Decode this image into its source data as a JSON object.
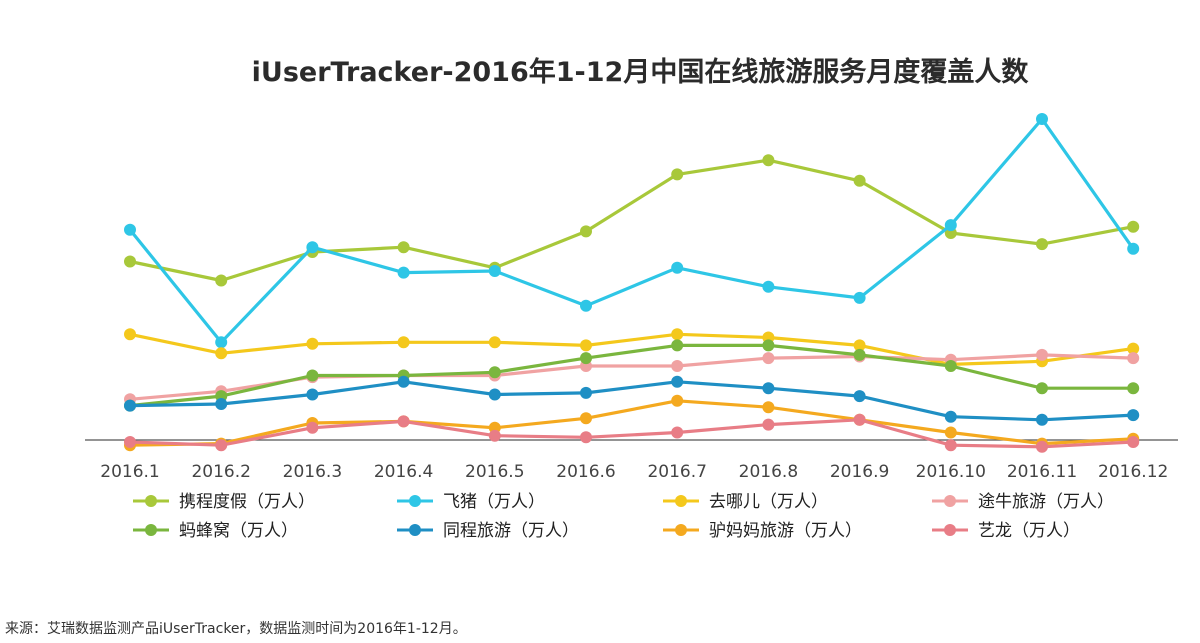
{
  "chart_data": {
    "type": "line",
    "title": "iUserTracker-2016年1-12月中国在线旅游服务月度覆盖人数",
    "xlabel": "",
    "ylabel": "",
    "categories": [
      "2016.1",
      "2016.2",
      "2016.3",
      "2016.4",
      "2016.5",
      "2016.6",
      "2016.7",
      "2016.8",
      "2016.9",
      "2016.10",
      "2016.11",
      "2016.12"
    ],
    "y_axis_visible": false,
    "grid": false,
    "legend_position": "bottom",
    "series": [
      {
        "name": "携程度假（万人）",
        "color": "#a8c83a",
        "values": [
          3190,
          3130,
          3220,
          3235,
          3170,
          3285,
          3465,
          3510,
          3445,
          3280,
          3245,
          3300
        ]
      },
      {
        "name": "飞猪（万人）",
        "color": "#2ec6e6",
        "values": [
          3290,
          2935,
          3235,
          3155,
          3160,
          3050,
          3170,
          3110,
          3075,
          3305,
          3640,
          3230
        ]
      },
      {
        "name": "去哪儿（万人）",
        "color": "#f4c81c",
        "values": [
          2960,
          2900,
          2930,
          2935,
          2935,
          2925,
          2960,
          2950,
          2925,
          2865,
          2875,
          2915
        ]
      },
      {
        "name": "途牛旅游（万人）",
        "color": "#f0a2a2",
        "values": [
          2755,
          2780,
          2825,
          2830,
          2830,
          2860,
          2860,
          2885,
          2890,
          2880,
          2895,
          2885
        ]
      },
      {
        "name": "蚂蜂窝（万人）",
        "color": "#7ab63e",
        "values": [
          2735,
          2765,
          2830,
          2830,
          2840,
          2885,
          2925,
          2925,
          2895,
          2860,
          2790,
          2790
        ]
      },
      {
        "name": "同程旅游（万人）",
        "color": "#1f8fc4",
        "values": [
          2735,
          2740,
          2770,
          2810,
          2770,
          2775,
          2810,
          2790,
          2765,
          2700,
          2690,
          2705
        ]
      },
      {
        "name": "驴妈妈旅游（万人）",
        "color": "#f4a91f",
        "values": [
          2610,
          2615,
          2680,
          2685,
          2665,
          2695,
          2750,
          2730,
          2690,
          2650,
          2615,
          2630
        ]
      },
      {
        "name": "艺龙（万人）",
        "color": "#e87d86",
        "values": [
          2620,
          2610,
          2665,
          2685,
          2640,
          2635,
          2650,
          2675,
          2690,
          2610,
          2605,
          2620
        ]
      }
    ]
  },
  "footnote": "来源：艾瑞数据监测产品iUserTracker，数据监测时间为2016年1-12月。"
}
